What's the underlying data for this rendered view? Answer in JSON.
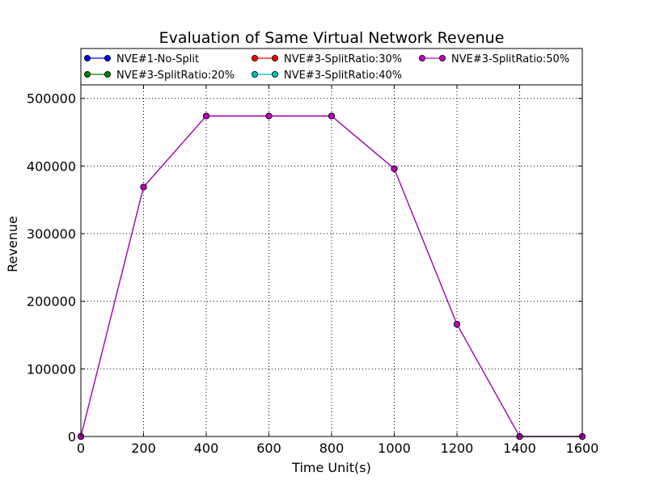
{
  "chart_data": {
    "type": "line",
    "title": "Evaluation of Same Virtual Network Revenue",
    "xlabel": "Time Unit(s)",
    "ylabel": "Revenue",
    "x": [
      0,
      200,
      400,
      600,
      800,
      1000,
      1200,
      1400,
      1600
    ],
    "xlim": [
      0,
      1600
    ],
    "ylim": [
      0,
      520000
    ],
    "xticks": [
      0,
      200,
      400,
      600,
      800,
      1000,
      1200,
      1400,
      1600
    ],
    "yticks": [
      0,
      100000,
      200000,
      300000,
      400000,
      500000
    ],
    "grid": true,
    "legend_position": "top",
    "series": [
      {
        "name": "NVE#1-No-Split",
        "color": "#0000ff",
        "values": [
          0,
          369000,
          474000,
          474000,
          474000,
          396000,
          166000,
          0,
          0
        ]
      },
      {
        "name": "NVE#3-SplitRatio:20%",
        "color": "#008000",
        "values": [
          0,
          369000,
          474000,
          474000,
          474000,
          396000,
          166000,
          0,
          0
        ]
      },
      {
        "name": "NVE#3-SplitRatio:30%",
        "color": "#ff0000",
        "values": [
          0,
          369000,
          474000,
          474000,
          474000,
          396000,
          166000,
          0,
          0
        ]
      },
      {
        "name": "NVE#3-SplitRatio:40%",
        "color": "#00bfbf",
        "values": [
          0,
          369000,
          474000,
          474000,
          474000,
          396000,
          166000,
          0,
          0
        ]
      },
      {
        "name": "NVE#3-SplitRatio:50%",
        "color": "#bf00bf",
        "values": [
          0,
          369000,
          474000,
          474000,
          474000,
          396000,
          166000,
          0,
          0
        ]
      }
    ]
  }
}
